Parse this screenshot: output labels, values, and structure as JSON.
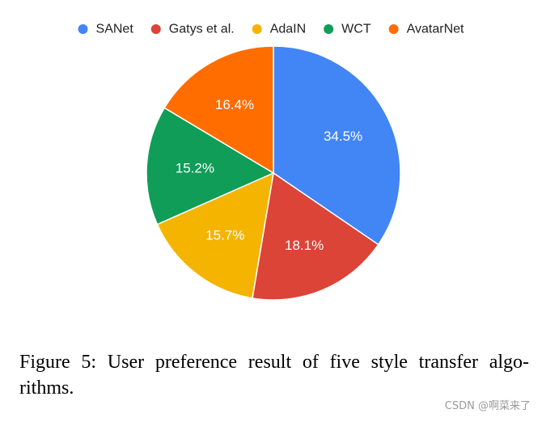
{
  "chart_data": {
    "type": "pie",
    "categories": [
      "SANet",
      "Gatys et al.",
      "AdaIN",
      "WCT",
      "AvatarNet"
    ],
    "values": [
      34.5,
      18.1,
      15.7,
      15.2,
      16.4
    ],
    "value_labels": [
      "34.5%",
      "18.1%",
      "15.7%",
      "15.2%",
      "16.4%"
    ],
    "colors": [
      "#4285f4",
      "#db4437",
      "#f4b400",
      "#0f9d58",
      "#ff6d01"
    ],
    "legend": {
      "placement": "top",
      "entries": [
        "SANet",
        "Gatys et al.",
        "AdaIN",
        "WCT",
        "AvatarNet"
      ]
    },
    "start_angle": "12 o'clock",
    "direction": "clockwise"
  },
  "caption": {
    "line1": "Figure 5: User preference result of five style transfer algo-",
    "line2": "rithms."
  },
  "watermark": "CSDN @啊菜来了"
}
